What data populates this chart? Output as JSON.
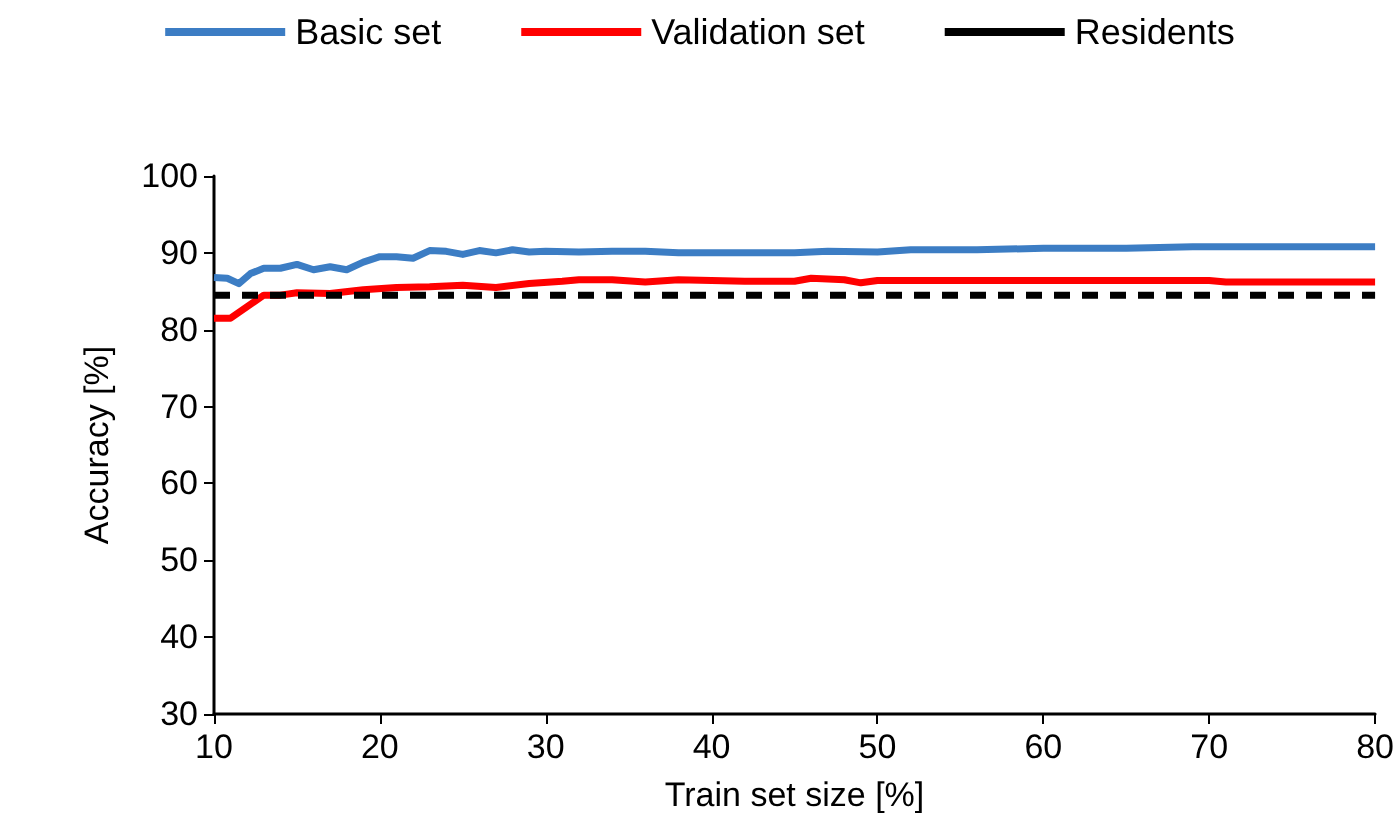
{
  "chart_data": {
    "type": "line",
    "xlabel": "Train set size [%]",
    "ylabel": "Accuracy [%]",
    "xlim": [
      10,
      80
    ],
    "xticks": [
      10,
      20,
      30,
      40,
      50,
      60,
      70,
      80
    ],
    "ylim": [
      30,
      100
    ],
    "yticks": [
      30,
      40,
      50,
      60,
      70,
      80,
      90,
      100
    ],
    "legend": "top",
    "grid": false,
    "marker": "none",
    "series": [
      {
        "name": "Basic set",
        "color": "#3c7dc4",
        "x": [
          10,
          10.8,
          11.5,
          12.2,
          13,
          14,
          15,
          16,
          17,
          18,
          19,
          20,
          21,
          22,
          23,
          24,
          25,
          26,
          27,
          28,
          29,
          30,
          32,
          34,
          36,
          38,
          40,
          45,
          47,
          50,
          52,
          56,
          60,
          65,
          69,
          75,
          80
        ],
        "values": [
          86.8,
          86.7,
          86.0,
          87.3,
          88.0,
          88.0,
          88.5,
          87.8,
          88.2,
          87.8,
          88.8,
          89.5,
          89.5,
          89.3,
          90.3,
          90.2,
          89.8,
          90.3,
          90.0,
          90.4,
          90.1,
          90.2,
          90.1,
          90.2,
          90.2,
          90.0,
          90.0,
          90.0,
          90.2,
          90.1,
          90.4,
          90.4,
          90.6,
          90.6,
          90.8,
          90.8,
          90.8
        ]
      },
      {
        "name": "Validation set",
        "color": "#ff0000",
        "x": [
          10,
          11,
          12,
          13,
          14,
          15,
          17,
          19,
          21,
          23,
          25,
          27,
          29,
          31,
          32,
          34,
          36,
          38,
          40,
          42,
          45,
          46,
          48,
          49,
          50,
          55,
          60,
          65,
          70,
          71,
          75,
          80
        ],
        "values": [
          81.5,
          81.5,
          83.0,
          84.5,
          84.5,
          84.8,
          84.7,
          85.2,
          85.5,
          85.6,
          85.8,
          85.5,
          86.0,
          86.3,
          86.5,
          86.5,
          86.2,
          86.5,
          86.4,
          86.3,
          86.3,
          86.7,
          86.5,
          86.1,
          86.4,
          86.4,
          86.4,
          86.4,
          86.4,
          86.2,
          86.2,
          86.2
        ]
      },
      {
        "name": "Residents",
        "color": "#000000",
        "line_style": "dashed",
        "x": [
          10,
          80
        ],
        "values": [
          84.5,
          84.5
        ]
      }
    ]
  }
}
